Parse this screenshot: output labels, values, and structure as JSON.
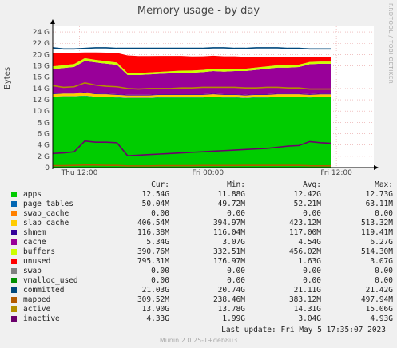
{
  "title": "Memory usage - by day",
  "side_text": "RRDTOOL / TOBI OETIKER",
  "footer": "Munin 2.0.25-1+deb8u3",
  "last_update": "Last update:  Fri May  5 17:35:07 2023",
  "legend_headers": {
    "cur": "Cur:",
    "min": "Min:",
    "avg": "Avg:",
    "max": "Max:"
  },
  "legend": [
    {
      "name": "apps",
      "color": "#00cc00",
      "cur": "12.54G",
      "min": "11.88G",
      "avg": "12.42G",
      "max": "12.73G"
    },
    {
      "name": "page_tables",
      "color": "#0066b3",
      "cur": "50.04M",
      "min": "49.72M",
      "avg": "52.21M",
      "max": "63.11M"
    },
    {
      "name": "swap_cache",
      "color": "#ff8000",
      "cur": "0.00",
      "min": "0.00",
      "avg": "0.00",
      "max": "0.00"
    },
    {
      "name": "slab_cache",
      "color": "#ffcc00",
      "cur": "406.54M",
      "min": "394.97M",
      "avg": "423.12M",
      "max": "513.32M"
    },
    {
      "name": "shmem",
      "color": "#330099",
      "cur": "116.38M",
      "min": "116.04M",
      "avg": "117.00M",
      "max": "119.41M"
    },
    {
      "name": "cache",
      "color": "#990099",
      "cur": "5.34G",
      "min": "3.07G",
      "avg": "4.54G",
      "max": "6.27G"
    },
    {
      "name": "buffers",
      "color": "#ccff00",
      "cur": "390.76M",
      "min": "332.51M",
      "avg": "456.02M",
      "max": "514.30M"
    },
    {
      "name": "unused",
      "color": "#ff0000",
      "cur": "795.31M",
      "min": "176.97M",
      "avg": "1.63G",
      "max": "3.07G"
    },
    {
      "name": "swap",
      "color": "#808080",
      "cur": "0.00",
      "min": "0.00",
      "avg": "0.00",
      "max": "0.00"
    },
    {
      "name": "vmalloc_used",
      "color": "#008f00",
      "cur": "0.00",
      "min": "0.00",
      "avg": "0.00",
      "max": "0.00"
    },
    {
      "name": "committed",
      "color": "#00487d",
      "cur": "21.03G",
      "min": "20.74G",
      "avg": "21.11G",
      "max": "21.42G"
    },
    {
      "name": "mapped",
      "color": "#b35a00",
      "cur": "309.52M",
      "min": "238.46M",
      "avg": "383.12M",
      "max": "497.94M"
    },
    {
      "name": "active",
      "color": "#b38f00",
      "cur": "13.90G",
      "min": "13.78G",
      "avg": "14.31G",
      "max": "15.06G"
    },
    {
      "name": "inactive",
      "color": "#6b006b",
      "cur": "4.33G",
      "min": "1.99G",
      "avg": "3.04G",
      "max": "4.93G"
    }
  ],
  "chart_data": {
    "type": "area",
    "title": "Memory usage - by day",
    "ylabel": "Bytes",
    "ylim": [
      0,
      25
    ],
    "y_unit": "G",
    "yticks": [
      "0",
      "2 G",
      "4 G",
      "6 G",
      "8 G",
      "10 G",
      "12 G",
      "14 G",
      "16 G",
      "18 G",
      "20 G",
      "22 G",
      "24 G"
    ],
    "x": [
      0,
      1,
      2,
      3,
      4,
      5,
      6,
      7,
      8,
      9,
      10,
      11,
      12,
      13,
      14,
      15,
      16,
      17,
      18,
      19,
      20,
      21,
      22,
      23,
      24,
      25,
      26
    ],
    "x_unit": "hours from start of graph",
    "xticks": [
      {
        "label": "Thu 12:00",
        "x": 2.5
      },
      {
        "label": "Fri 00:00",
        "x": 14.5
      },
      {
        "label": "Fri 12:00",
        "x": 26.5
      }
    ],
    "x_range": [
      0,
      30
    ],
    "stacked_series": [
      {
        "name": "apps",
        "values": [
          12.5,
          12.6,
          12.6,
          12.7,
          12.5,
          12.5,
          12.4,
          12.3,
          12.3,
          12.3,
          12.4,
          12.4,
          12.4,
          12.4,
          12.4,
          12.5,
          12.4,
          12.4,
          12.3,
          12.4,
          12.4,
          12.5,
          12.5,
          12.5,
          12.4,
          12.5,
          12.5
        ]
      },
      {
        "name": "page_tables",
        "values": [
          0.05,
          0.05,
          0.05,
          0.05,
          0.05,
          0.05,
          0.05,
          0.05,
          0.05,
          0.05,
          0.05,
          0.05,
          0.05,
          0.05,
          0.05,
          0.05,
          0.05,
          0.05,
          0.05,
          0.05,
          0.05,
          0.05,
          0.05,
          0.05,
          0.05,
          0.05,
          0.05
        ]
      },
      {
        "name": "slab_cache",
        "values": [
          0.45,
          0.45,
          0.45,
          0.5,
          0.45,
          0.42,
          0.42,
          0.42,
          0.42,
          0.42,
          0.42,
          0.42,
          0.42,
          0.42,
          0.42,
          0.42,
          0.42,
          0.42,
          0.42,
          0.42,
          0.42,
          0.42,
          0.42,
          0.42,
          0.42,
          0.41,
          0.41
        ]
      },
      {
        "name": "shmem",
        "values": [
          0.12,
          0.12,
          0.12,
          0.12,
          0.12,
          0.12,
          0.12,
          0.12,
          0.12,
          0.12,
          0.12,
          0.12,
          0.12,
          0.12,
          0.12,
          0.12,
          0.12,
          0.12,
          0.12,
          0.12,
          0.12,
          0.12,
          0.12,
          0.12,
          0.12,
          0.12,
          0.12
        ]
      },
      {
        "name": "cache",
        "values": [
          4.3,
          4.4,
          4.6,
          5.5,
          5.5,
          5.3,
          5.2,
          3.5,
          3.5,
          3.6,
          3.6,
          3.7,
          3.8,
          3.8,
          3.9,
          4.0,
          4.0,
          4.1,
          4.2,
          4.3,
          4.5,
          4.6,
          4.6,
          4.7,
          5.3,
          5.3,
          5.3
        ]
      },
      {
        "name": "buffers",
        "values": [
          0.5,
          0.5,
          0.5,
          0.5,
          0.45,
          0.45,
          0.4,
          0.35,
          0.35,
          0.35,
          0.36,
          0.36,
          0.37,
          0.38,
          0.39,
          0.4,
          0.4,
          0.4,
          0.41,
          0.41,
          0.42,
          0.42,
          0.42,
          0.43,
          0.4,
          0.39,
          0.39
        ]
      },
      {
        "name": "unused",
        "values": [
          2.4,
          2.2,
          2.0,
          1.0,
          1.3,
          1.5,
          1.7,
          3.1,
          3.0,
          2.9,
          2.8,
          2.7,
          2.6,
          2.5,
          2.4,
          2.3,
          2.3,
          2.2,
          2.1,
          1.9,
          1.7,
          1.5,
          1.4,
          1.3,
          0.8,
          0.8,
          0.8
        ]
      }
    ],
    "line_series": [
      {
        "name": "committed",
        "values": [
          21.2,
          21.0,
          21.0,
          21.1,
          21.2,
          21.2,
          21.1,
          21.1,
          21.1,
          21.1,
          21.1,
          21.1,
          21.1,
          21.1,
          21.1,
          21.2,
          21.2,
          21.1,
          21.1,
          21.2,
          21.2,
          21.2,
          21.1,
          21.1,
          21.0,
          21.0,
          21.0
        ]
      },
      {
        "name": "active",
        "values": [
          14.5,
          14.2,
          14.3,
          15.0,
          14.6,
          14.4,
          14.3,
          14.0,
          13.9,
          14.0,
          14.0,
          14.0,
          14.1,
          14.1,
          14.2,
          14.2,
          14.2,
          14.2,
          14.1,
          14.1,
          14.2,
          14.2,
          14.1,
          14.1,
          13.9,
          13.9,
          13.9
        ]
      },
      {
        "name": "inactive",
        "values": [
          2.5,
          2.6,
          2.8,
          4.7,
          4.5,
          4.5,
          4.4,
          2.1,
          2.2,
          2.3,
          2.4,
          2.5,
          2.6,
          2.7,
          2.8,
          2.9,
          3.0,
          3.1,
          3.2,
          3.3,
          3.4,
          3.6,
          3.8,
          3.9,
          4.6,
          4.4,
          4.3
        ]
      },
      {
        "name": "mapped",
        "values": [
          0.35,
          0.35,
          0.4,
          0.45,
          0.45,
          0.4,
          0.4,
          0.3,
          0.3,
          0.3,
          0.35,
          0.35,
          0.35,
          0.35,
          0.38,
          0.38,
          0.38,
          0.38,
          0.4,
          0.4,
          0.4,
          0.4,
          0.4,
          0.4,
          0.32,
          0.31,
          0.31
        ]
      }
    ]
  }
}
